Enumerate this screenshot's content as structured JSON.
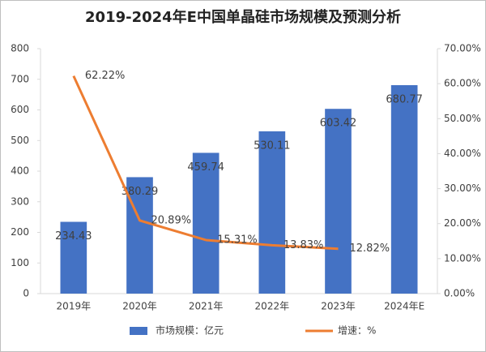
{
  "chart_data": {
    "type": "bar-line",
    "title": "2019-2024年E中国单晶硅市场规模及预测分析",
    "categories": [
      "2019年",
      "2020年",
      "2021年",
      "2022年",
      "2023年",
      "2024年E"
    ],
    "series": [
      {
        "name": "市场规模：亿元",
        "type": "bar",
        "color": "#4472c4",
        "values": [
          234.43,
          380.29,
          459.74,
          530.11,
          603.42,
          680.77
        ]
      },
      {
        "name": "增速：%",
        "type": "line",
        "axis": "y2",
        "color": "#ed7d31",
        "values": [
          62.22,
          20.89,
          15.31,
          13.83,
          12.82,
          null
        ],
        "value_labels": [
          "62.22%",
          "20.89%",
          "15.31%",
          "13.83%",
          "12.82%",
          null
        ]
      }
    ],
    "ylim": [
      0,
      800
    ],
    "yticks": [
      0,
      100,
      200,
      300,
      400,
      500,
      600,
      700,
      800
    ],
    "y2lim": [
      0,
      70
    ],
    "y2ticks": [
      {
        "value": 0,
        "label": "0.00%"
      },
      {
        "value": 10,
        "label": "10.00%"
      },
      {
        "value": 20,
        "label": "20.00%"
      },
      {
        "value": 30,
        "label": "30.00%"
      },
      {
        "value": 40,
        "label": "40.00%"
      },
      {
        "value": 50,
        "label": "50.00%"
      },
      {
        "value": 60,
        "label": "60.00%"
      },
      {
        "value": 70,
        "label": "70.00%"
      }
    ],
    "grid": false,
    "legend": "bottom"
  }
}
